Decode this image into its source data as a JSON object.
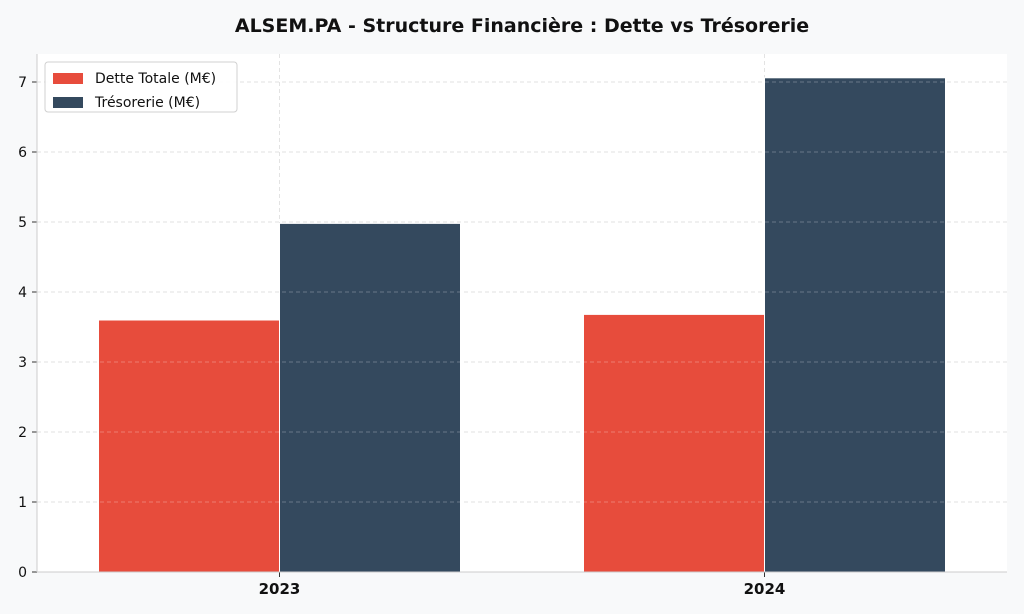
{
  "chart_data": {
    "type": "bar",
    "title": "ALSEM.PA - Structure Financière : Dette vs Trésorerie",
    "xlabel": "",
    "ylabel": "",
    "categories": [
      "2023",
      "2024"
    ],
    "series": [
      {
        "name": "Dette Totale (M€)",
        "values": [
          3.6,
          3.68
        ],
        "color": "#e74c3c"
      },
      {
        "name": "Trésorerie (M€)",
        "values": [
          4.98,
          7.06
        ],
        "color": "#34495e"
      }
    ],
    "ylim": [
      0,
      7.4
    ],
    "yticks": [
      0,
      1,
      2,
      3,
      4,
      5,
      6,
      7
    ],
    "grid": true,
    "legend_position": "top-left"
  }
}
